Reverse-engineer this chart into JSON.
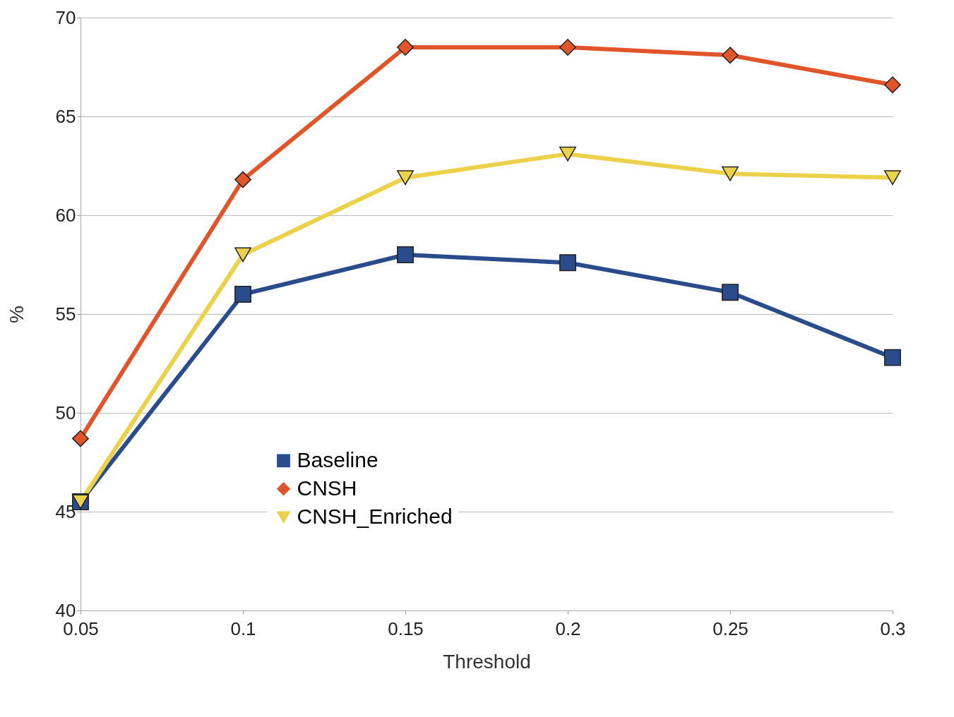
{
  "chart_data": {
    "type": "line",
    "xlabel": "Threshold",
    "ylabel": "%",
    "x": [
      0.05,
      0.1,
      0.15,
      0.2,
      0.25,
      0.3
    ],
    "xlim": [
      0.05,
      0.3
    ],
    "xticks": [
      0.05,
      0.1,
      0.15,
      0.2,
      0.25,
      0.3
    ],
    "ylim": [
      40,
      70
    ],
    "yticks": [
      40,
      45,
      50,
      55,
      60,
      65,
      70
    ],
    "grid": "y",
    "legend": "bottom left",
    "line_style": "solid",
    "series": [
      {
        "name": "Baseline",
        "color": "#2b4c8c",
        "marker": "square",
        "values": [
          45.5,
          56.0,
          58.0,
          57.6,
          56.1,
          52.8
        ]
      },
      {
        "name": "CNSH",
        "color": "#e0562a",
        "marker": "diamond",
        "values": [
          48.7,
          61.8,
          68.5,
          68.5,
          68.1,
          66.6
        ]
      },
      {
        "name": "CNSH_Enriched",
        "color": "#ecd24a",
        "marker": "triangle",
        "values": [
          45.5,
          58.0,
          61.9,
          63.1,
          62.1,
          61.9
        ]
      }
    ]
  }
}
